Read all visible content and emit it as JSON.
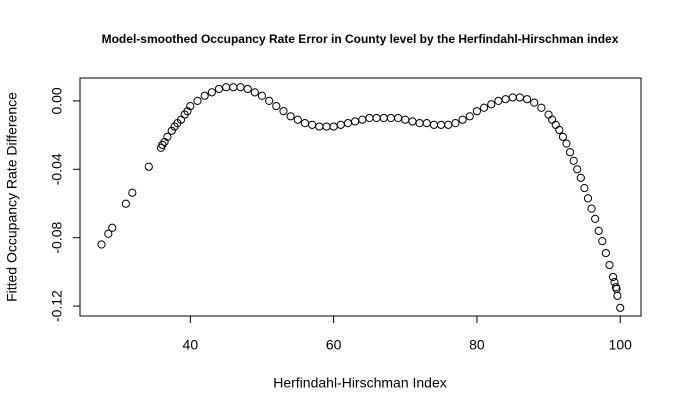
{
  "chart_data": {
    "type": "scatter",
    "title": "Model-smoothed Occupancy Rate Error in County level by the Herfindahl-Hirschman index",
    "xlabel": "Herfindahl-Hirschman Index",
    "ylabel": "Fitted Occupancy Rate Difference",
    "x": [
      27.6,
      28.55,
      29.1,
      31.0,
      31.9,
      34.2,
      35.9,
      36.1,
      36.4,
      36.8,
      37.4,
      37.8,
      38.2,
      38.7,
      39.2,
      39.6,
      40,
      41,
      42,
      43,
      44,
      45,
      46,
      47,
      48,
      49,
      50,
      51,
      52,
      53,
      54,
      55,
      56,
      57,
      58,
      59,
      60,
      61,
      62,
      63,
      64,
      65,
      66,
      67,
      68,
      69,
      70,
      71,
      72,
      73,
      74,
      75,
      76,
      77,
      78,
      79,
      80,
      81,
      82,
      83,
      84,
      85,
      86,
      87,
      88,
      89,
      90,
      90.5,
      91,
      91.5,
      92,
      92.5,
      93,
      93.5,
      94,
      94.5,
      95,
      95.5,
      96,
      96.5,
      97,
      97.5,
      98,
      98.5,
      99,
      99.2,
      99.4,
      99.5,
      99.6,
      100
    ],
    "values": [
      -0.084,
      -0.0777,
      -0.0742,
      -0.0601,
      -0.0537,
      -0.0385,
      -0.0274,
      -0.0257,
      -0.024,
      -0.021,
      -0.0175,
      -0.015,
      -0.013,
      -0.011,
      -0.008,
      -0.006,
      -0.003,
      0.0,
      0.003,
      0.005,
      0.007,
      0.008,
      0.008,
      0.008,
      0.007,
      0.005,
      0.003,
      0.0,
      -0.003,
      -0.006,
      -0.009,
      -0.011,
      -0.013,
      -0.014,
      -0.015,
      -0.015,
      -0.015,
      -0.014,
      -0.013,
      -0.012,
      -0.011,
      -0.01,
      -0.01,
      -0.01,
      -0.01,
      -0.01,
      -0.011,
      -0.012,
      -0.013,
      -0.013,
      -0.014,
      -0.014,
      -0.014,
      -0.013,
      -0.011,
      -0.009,
      -0.006,
      -0.004,
      -0.002,
      0.0,
      0.001,
      0.002,
      0.002,
      0.001,
      -0.001,
      -0.004,
      -0.008,
      -0.011,
      -0.014,
      -0.017,
      -0.021,
      -0.025,
      -0.03,
      -0.035,
      -0.04,
      -0.045,
      -0.051,
      -0.057,
      -0.063,
      -0.069,
      -0.076,
      -0.082,
      -0.089,
      -0.096,
      -0.103,
      -0.106,
      -0.109,
      -0.11,
      -0.114,
      -0.121
    ],
    "color": "#000000",
    "xlim": [
      24.6,
      102.9
    ],
    "ylim": [
      -0.1258,
      0.0134
    ],
    "xticks": [
      40,
      60,
      80,
      100
    ],
    "yticks": [
      {
        "value": 0,
        "label": "0.00"
      },
      -0.04,
      -0.08,
      -0.12
    ]
  }
}
